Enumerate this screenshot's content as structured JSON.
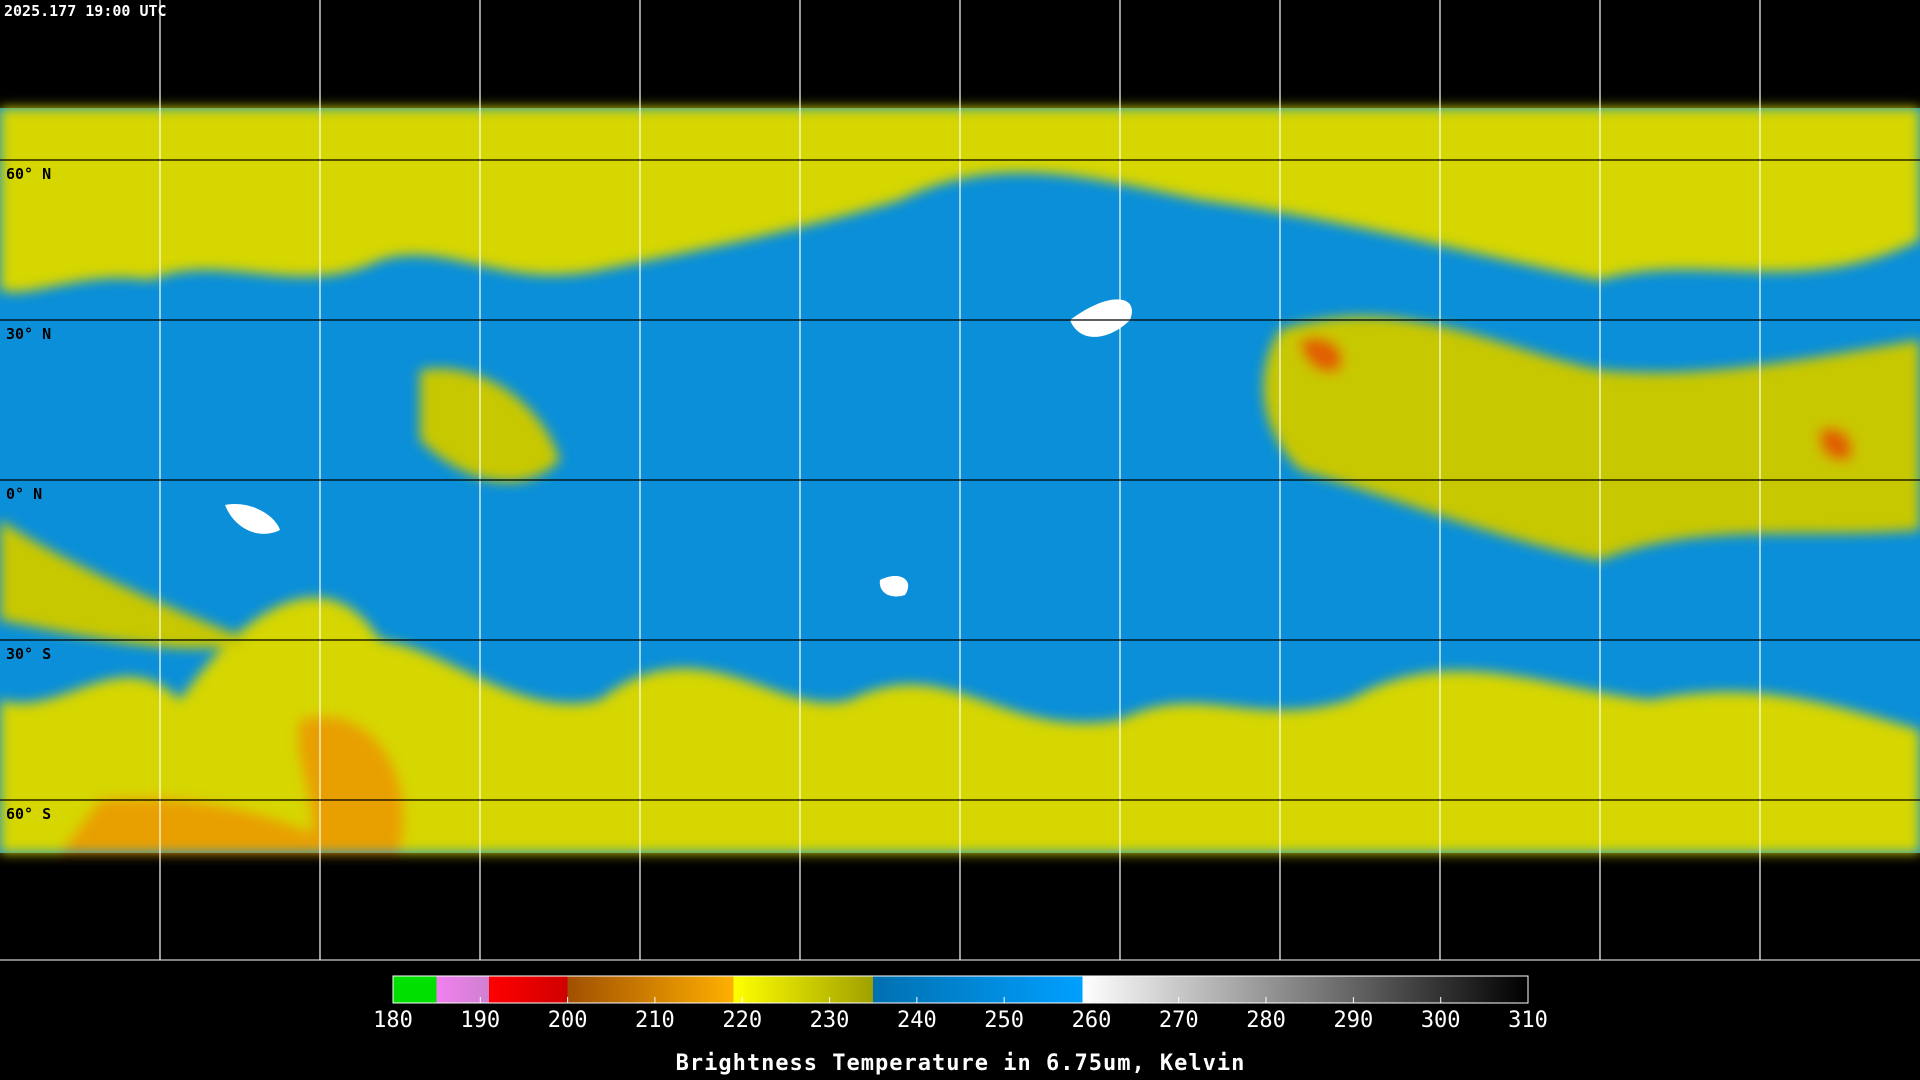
{
  "timestamp": "2025.177 19:00 UTC",
  "lat_labels": [
    "60° N",
    "30° N",
    "0° N",
    "30° S",
    "60° S"
  ],
  "colorbar": {
    "title": "Brightness Temperature in 6.75um, Kelvin",
    "range": [
      180,
      310
    ],
    "ticks": [
      180,
      190,
      200,
      210,
      220,
      230,
      240,
      250,
      260,
      270,
      280,
      290,
      300,
      310
    ],
    "stops": [
      {
        "value": 180,
        "color": "#00e000"
      },
      {
        "value": 185,
        "color": "#00e000"
      },
      {
        "value": 185,
        "color": "#f080f0"
      },
      {
        "value": 191,
        "color": "#d080d0"
      },
      {
        "value": 191,
        "color": "#ff0000"
      },
      {
        "value": 200,
        "color": "#d00000"
      },
      {
        "value": 200,
        "color": "#a05000"
      },
      {
        "value": 219,
        "color": "#ffb000"
      },
      {
        "value": 219,
        "color": "#ffff00"
      },
      {
        "value": 235,
        "color": "#a0a000"
      },
      {
        "value": 235,
        "color": "#0070b0"
      },
      {
        "value": 259,
        "color": "#00a0ff"
      },
      {
        "value": 259,
        "color": "#ffffff"
      },
      {
        "value": 310,
        "color": "#000000"
      }
    ]
  }
}
